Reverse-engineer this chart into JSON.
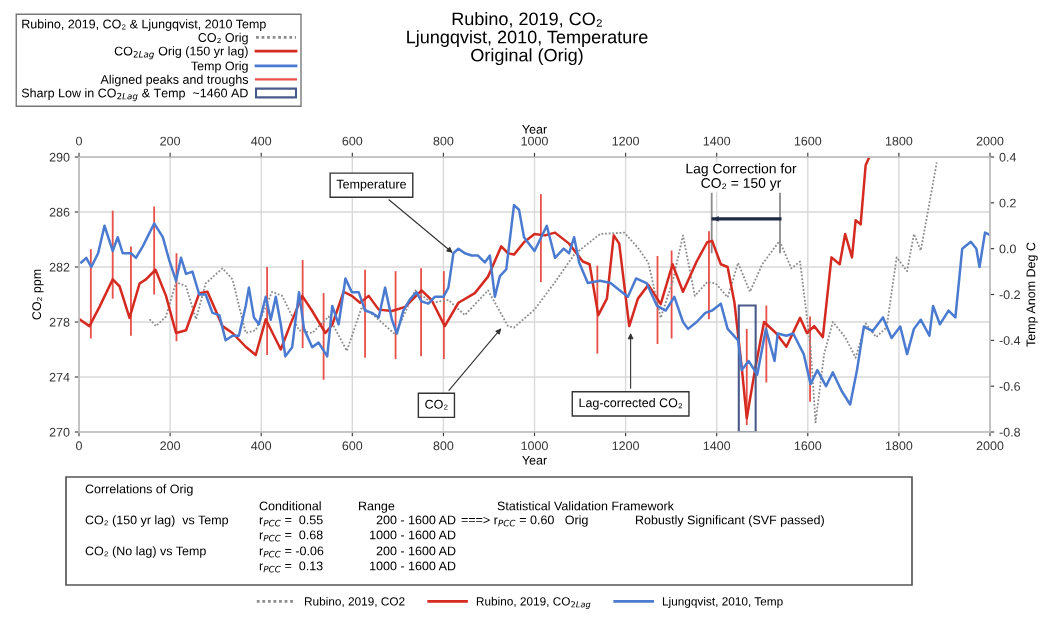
{
  "chart_data": {
    "type": "line",
    "title": "Rubino, 2019, CO₂\nLjungqvist, 2010, Temperature\nOriginal (Orig)",
    "xlabel": "Year",
    "x2label": "Year",
    "ylabel": "CO₂ ppm",
    "y2label": "Temp Anom Deg C",
    "legend_title": "Rubino, 2019, CO₂ & Ljungqvist, 2010 Temp",
    "legend": "top left",
    "grid": true,
    "xlim": [
      0,
      2000
    ],
    "xticks": [
      0,
      200,
      400,
      600,
      800,
      1000,
      1200,
      1400,
      1600,
      1800,
      2000
    ],
    "x2lim": [
      0,
      2000
    ],
    "x2ticks": [
      0,
      200,
      400,
      600,
      800,
      1000,
      1200,
      1400,
      1600,
      1800,
      2000
    ],
    "ylim": [
      270,
      290
    ],
    "yticks": [
      270,
      274,
      278,
      282,
      286,
      290
    ],
    "y2lim": [
      -0.8,
      0.4
    ],
    "y2ticks": [
      -0.8,
      -0.6,
      -0.4,
      -0.2,
      {
        "value": 0,
        "label": "0.0"
      },
      0.2,
      0.4
    ],
    "series": [
      {
        "name": "CO₂ Orig",
        "type": "line",
        "line_style": "dotted",
        "color": "#8c8c8c",
        "x": [
          155,
          169,
          191,
          213,
          235,
          257,
          278,
          315,
          337,
          366,
          388,
          424,
          446,
          483,
          512,
          548,
          588,
          621,
          650,
          694,
          738,
          774,
          811,
          847,
          898,
          942,
          955,
          1000,
          1045,
          1087,
          1144,
          1197,
          1227,
          1250,
          1277,
          1303,
          1326,
          1352,
          1379,
          1398,
          1424,
          1447,
          1473,
          1500,
          1538,
          1564,
          1583,
          1606,
          1617,
          1636,
          1655,
          1682,
          1705,
          1727,
          1750,
          1773,
          1795,
          1818,
          1833,
          1848,
          1864,
          1883
        ],
        "values": [
          278.2,
          277.7,
          278.4,
          280.9,
          280.6,
          278.2,
          280.8,
          281.9,
          281.1,
          277.2,
          277.4,
          280.2,
          279.9,
          277.4,
          277.2,
          278.4,
          275.9,
          279.1,
          278.4,
          277.1,
          280.3,
          279.4,
          279.6,
          278.5,
          280.3,
          277.7,
          277.6,
          278.9,
          280.9,
          282.9,
          284.4,
          284.5,
          283.4,
          282.3,
          278.3,
          280.9,
          284.3,
          279.9,
          280.9,
          280.8,
          279.8,
          282.3,
          280.2,
          282.2,
          283.9,
          281.9,
          282.4,
          276.2,
          270.7,
          275.7,
          278.0,
          276.9,
          275.4,
          277.9,
          276.9,
          277.6,
          282.7,
          281.7,
          284.4,
          283.2,
          286.1,
          289.6
        ]
      },
      {
        "name": "CO$_{2Lag}$ Orig (150 yr lag)",
        "type": "line",
        "line_style": "solid",
        "color": "#d42a20",
        "x": [
          1,
          23,
          45,
          74,
          89,
          111,
          133,
          147,
          168,
          191,
          213,
          235,
          264,
          282,
          315,
          337,
          366,
          388,
          410,
          428,
          443,
          465,
          490,
          512,
          541,
          556,
          581,
          599,
          617,
          636,
          658,
          687,
          716,
          752,
          774,
          803,
          833,
          869,
          898,
          927,
          942,
          955,
          977,
          1000,
          1023,
          1045,
          1076,
          1106,
          1121,
          1140,
          1159,
          1174,
          1186,
          1208,
          1227,
          1250,
          1277,
          1303,
          1326,
          1356,
          1379,
          1390,
          1409,
          1424,
          1439,
          1455,
          1466,
          1485,
          1504,
          1530,
          1553,
          1583,
          1598,
          1614,
          1633,
          1652,
          1670,
          1682,
          1697,
          1705,
          1716,
          1727,
          1735
        ],
        "values": [
          278.2,
          277.7,
          279.1,
          281.1,
          280.6,
          278.3,
          280.8,
          281.1,
          281.8,
          279.9,
          277.2,
          277.4,
          280.1,
          280.2,
          277.7,
          277.2,
          276.2,
          275.6,
          278.2,
          277.0,
          276.0,
          277.9,
          279.9,
          278.8,
          277.2,
          277.8,
          280.2,
          279.9,
          279.4,
          279.9,
          278.9,
          278.8,
          279.1,
          280.3,
          279.6,
          277.7,
          279.4,
          280.1,
          281.3,
          283.5,
          283.0,
          282.9,
          283.8,
          284.4,
          284.3,
          284.5,
          283.7,
          282.4,
          282.2,
          278.5,
          279.7,
          284.3,
          283.7,
          277.7,
          279.7,
          280.7,
          279.3,
          282.2,
          280.2,
          282.4,
          283.8,
          283.9,
          282.2,
          282.0,
          279.4,
          274.7,
          271.0,
          274.7,
          278.0,
          277.2,
          276.2,
          278.3,
          277.2,
          277.7,
          276.9,
          282.7,
          282.2,
          284.4,
          282.7,
          285.4,
          285.1,
          289.4,
          290.0
        ]
      },
      {
        "name": "Temp Orig",
        "type": "line",
        "axis": "y2",
        "line_style": "solid",
        "color": "#4a7bd0",
        "x": [
          5,
          16,
          27,
          42,
          56,
          74,
          85,
          96,
          114,
          125,
          140,
          165,
          184,
          198,
          213,
          224,
          235,
          249,
          264,
          278,
          293,
          308,
          322,
          337,
          351,
          366,
          373,
          384,
          395,
          410,
          421,
          432,
          443,
          453,
          468,
          483,
          494,
          512,
          526,
          545,
          556,
          570,
          585,
          599,
          614,
          628,
          643,
          658,
          672,
          687,
          698,
          712,
          727,
          741,
          752,
          767,
          781,
          800,
          811,
          822,
          833,
          847,
          862,
          876,
          891,
          902,
          913,
          924,
          938,
          955,
          966,
          977,
          1000,
          1027,
          1045,
          1064,
          1076,
          1087,
          1098,
          1117,
          1144,
          1167,
          1186,
          1205,
          1223,
          1246,
          1269,
          1288,
          1307,
          1326,
          1337,
          1356,
          1375,
          1390,
          1409,
          1424,
          1447,
          1455,
          1470,
          1489,
          1508,
          1527,
          1534,
          1553,
          1568,
          1591,
          1606,
          1621,
          1640,
          1655,
          1674,
          1693,
          1708,
          1723,
          1742,
          1765,
          1784,
          1803,
          1818,
          1833,
          1848,
          1867,
          1875,
          1890,
          1909,
          1924,
          1939,
          1958,
          1970,
          1977,
          1989,
          2000
        ],
        "values": [
          -0.06,
          -0.04,
          -0.08,
          -0.02,
          0.1,
          -0.01,
          0.05,
          -0.02,
          -0.02,
          -0.04,
          0.01,
          0.11,
          0.05,
          -0.05,
          -0.14,
          -0.04,
          -0.11,
          -0.1,
          -0.2,
          -0.2,
          -0.28,
          -0.29,
          -0.4,
          -0.38,
          -0.38,
          -0.25,
          -0.17,
          -0.3,
          -0.33,
          -0.21,
          -0.31,
          -0.21,
          -0.33,
          -0.47,
          -0.43,
          -0.19,
          -0.35,
          -0.43,
          -0.41,
          -0.47,
          -0.25,
          -0.33,
          -0.13,
          -0.19,
          -0.19,
          -0.27,
          -0.28,
          -0.3,
          -0.17,
          -0.31,
          -0.37,
          -0.27,
          -0.22,
          -0.19,
          -0.23,
          -0.24,
          -0.21,
          -0.21,
          -0.17,
          -0.02,
          0.0,
          -0.02,
          -0.03,
          -0.03,
          -0.06,
          -0.03,
          -0.21,
          -0.12,
          -0.09,
          0.19,
          0.17,
          0.05,
          -0.01,
          0.1,
          -0.04,
          0.0,
          -0.02,
          0.05,
          -0.06,
          -0.15,
          -0.14,
          -0.15,
          -0.18,
          -0.21,
          -0.13,
          -0.15,
          -0.25,
          -0.27,
          -0.21,
          -0.32,
          -0.35,
          -0.32,
          -0.28,
          -0.27,
          -0.24,
          -0.35,
          -0.4,
          -0.53,
          -0.49,
          -0.55,
          -0.35,
          -0.49,
          -0.37,
          -0.38,
          -0.37,
          -0.46,
          -0.59,
          -0.53,
          -0.6,
          -0.54,
          -0.62,
          -0.68,
          -0.53,
          -0.34,
          -0.36,
          -0.3,
          -0.39,
          -0.34,
          -0.46,
          -0.35,
          -0.31,
          -0.38,
          -0.25,
          -0.33,
          -0.27,
          -0.3,
          0.0,
          0.03,
          0.0,
          -0.08,
          0.07,
          0.06
        ]
      },
      {
        "name": "Aligned peaks and troughs",
        "type": "bar",
        "color": "#e8504a",
        "x": [
          26,
          74,
          114,
          165,
          214,
          413,
          491,
          537,
          628,
          695,
          751,
          801,
          1014,
          1138,
          1270,
          1301,
          1383,
          1466,
          1509,
          1605
        ],
        "base": [
          276.8,
          279.7,
          277.0,
          280.0,
          276.6,
          275.6,
          276.1,
          273.8,
          275.4,
          275.3,
          275.5,
          275.3,
          280.9,
          275.7,
          276.4,
          276.8,
          278.2,
          270.5,
          273.6,
          272.2
        ],
        "values": [
          6.5,
          6.4,
          6.5,
          6.4,
          6.4,
          6.4,
          6.4,
          6.3,
          6.4,
          6.4,
          6.4,
          6.4,
          6.4,
          6.4,
          6.4,
          6.4,
          6.4,
          7.0,
          5.6,
          6.2
        ]
      },
      {
        "name": "Sharp Low in CO$_{2Lag}$ & Temp  ~1460 AD",
        "type": "bar",
        "line_style": "solid",
        "color": "#4a5a8a",
        "x": [
          1467
        ],
        "base": [
          270
        ],
        "values": [
          9.2
        ]
      },
      {
        "type": "bar",
        "color": "#8c8c8c",
        "x": [
          1389,
          1539
        ],
        "base": [
          283.0,
          283.0
        ],
        "values": [
          4.4,
          4.4
        ]
      },
      {
        "color": "#1f2a44",
        "x": [
          1539,
          1392
        ],
        "values": [
          285.5,
          285.5
        ]
      }
    ],
    "annotations": [
      {
        "text": "Temperature",
        "x": 825,
        "y": 282.9
      },
      {
        "text": "CO₂",
        "x": 931,
        "y": 277.7
      },
      {
        "text": "Lag-corrected CO₂",
        "x": 1211,
        "y": 277.4
      },
      "Lag Correction for\nCO₂ = 150 yr",
      "Correlations of Orig",
      "Conditional",
      "Range",
      "Statistical Validation Framework",
      "CO₂ (150 yr lag)  vs Temp",
      "r$_{PCC}$ =  0.55",
      "200 - 1600 AD",
      "===> r$_{PCC}$ = 0.60   Orig",
      "Robustly Significant (SVF passed)",
      "r$_{PCC}$ =  0.68",
      "1000 - 1600 AD",
      "CO₂ (No lag) vs Temp",
      "r$_{PCC}$ = -0.06",
      "200 - 1600 AD",
      "r$_{PCC}$ =  0.13",
      "1000 - 1600 AD",
      "Rubino, 2019, CO2",
      "Rubino, 2019, CO$_{2Lag}$",
      "Ljungqvist, 2010, Temp"
    ]
  }
}
